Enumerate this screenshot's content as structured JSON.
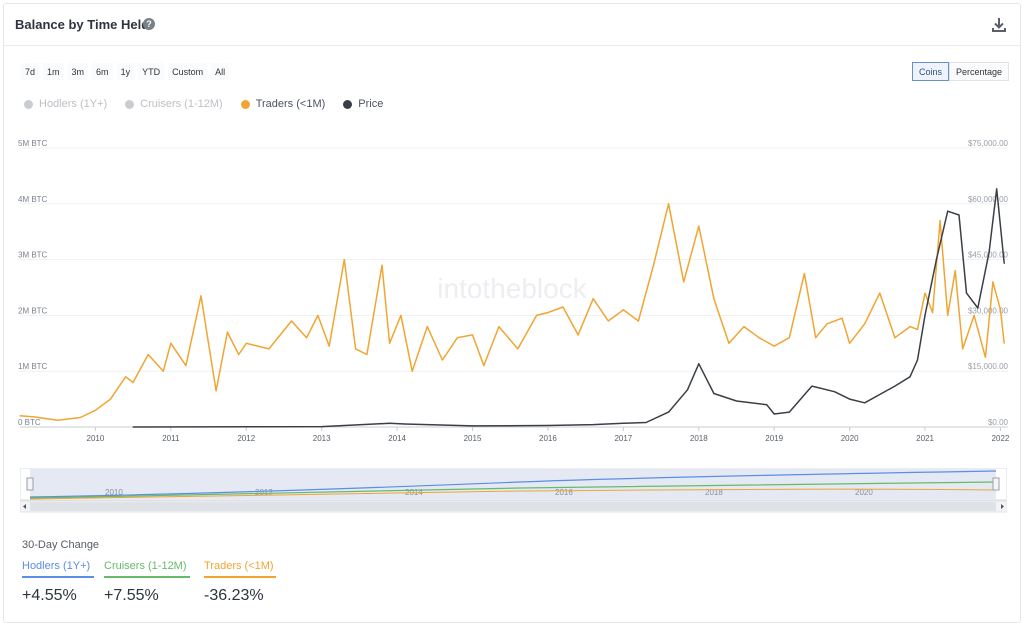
{
  "header": {
    "title": "Balance by Time Held"
  },
  "ranges": [
    "7d",
    "1m",
    "3m",
    "6m",
    "1y",
    "YTD",
    "Custom",
    "All"
  ],
  "toggle": {
    "coins": "Coins",
    "percentage": "Percentage",
    "active": "coins"
  },
  "legend": [
    {
      "label": "Hodlers (1Y+)",
      "color": "#c9ccd1",
      "enabled": false
    },
    {
      "label": "Cruisers (1-12M)",
      "color": "#c9ccd1",
      "enabled": false
    },
    {
      "label": "Traders (<1M)",
      "color": "#f0a532",
      "enabled": true
    },
    {
      "label": "Price",
      "color": "#3a3f46",
      "enabled": true
    }
  ],
  "watermark": "intotheblock",
  "chart_data": {
    "type": "line",
    "title": "Balance by Time Held",
    "x_ticks": [
      "2010",
      "2011",
      "2012",
      "2013",
      "2014",
      "2015",
      "2016",
      "2017",
      "2018",
      "2019",
      "2020",
      "2021",
      "2022"
    ],
    "y_left": {
      "ticks": [
        "0 BTC",
        "1M BTC",
        "2M BTC",
        "3M BTC",
        "4M BTC",
        "5M BTC"
      ],
      "range": [
        0,
        5000000
      ]
    },
    "y_right": {
      "ticks": [
        "$0.00",
        "$15,000.00",
        "$30,000.00",
        "$45,000.00",
        "$60,000.00",
        "$75,000.00"
      ],
      "range": [
        0,
        75000
      ]
    },
    "grid": true,
    "series": [
      {
        "name": "Traders (<1M)",
        "axis": "left",
        "color": "#f0a532",
        "x": [
          2009.0,
          2009.2,
          2009.5,
          2009.8,
          2010.0,
          2010.2,
          2010.4,
          2010.5,
          2010.7,
          2010.9,
          2011.0,
          2011.2,
          2011.4,
          2011.5,
          2011.6,
          2011.75,
          2011.9,
          2012.0,
          2012.3,
          2012.6,
          2012.8,
          2012.95,
          2013.1,
          2013.3,
          2013.45,
          2013.6,
          2013.8,
          2013.9,
          2014.05,
          2014.2,
          2014.4,
          2014.6,
          2014.8,
          2015.0,
          2015.15,
          2015.35,
          2015.6,
          2015.85,
          2016.0,
          2016.2,
          2016.4,
          2016.6,
          2016.8,
          2017.0,
          2017.2,
          2017.4,
          2017.6,
          2017.8,
          2018.0,
          2018.2,
          2018.4,
          2018.6,
          2018.8,
          2019.0,
          2019.2,
          2019.4,
          2019.55,
          2019.7,
          2019.9,
          2020.0,
          2020.2,
          2020.4,
          2020.6,
          2020.8,
          2020.9,
          2021.0,
          2021.1,
          2021.2,
          2021.3,
          2021.4,
          2021.5,
          2021.65,
          2021.8,
          2021.9,
          2022.0,
          2022.05
        ],
        "values": [
          200000,
          180000,
          120000,
          170000,
          300000,
          500000,
          900000,
          800000,
          1300000,
          1000000,
          1500000,
          1100000,
          2350000,
          1500000,
          650000,
          1700000,
          1300000,
          1500000,
          1400000,
          1900000,
          1600000,
          2000000,
          1450000,
          3000000,
          1400000,
          1300000,
          2900000,
          1500000,
          2000000,
          1000000,
          1800000,
          1200000,
          1600000,
          1650000,
          1100000,
          1800000,
          1400000,
          2000000,
          2050000,
          2150000,
          1650000,
          2300000,
          1900000,
          2100000,
          1900000,
          2900000,
          4000000,
          2600000,
          3600000,
          2300000,
          1500000,
          1800000,
          1600000,
          1450000,
          1600000,
          2750000,
          1600000,
          1850000,
          1950000,
          1500000,
          1850000,
          2400000,
          1600000,
          1800000,
          1750000,
          2400000,
          2050000,
          3700000,
          2000000,
          2800000,
          1400000,
          2000000,
          1250000,
          2600000,
          2100000,
          1500000
        ]
      },
      {
        "name": "Price",
        "axis": "right",
        "color": "#3a3f46",
        "x": [
          2010.5,
          2013.0,
          2013.9,
          2014.1,
          2015.0,
          2016.0,
          2016.6,
          2017.0,
          2017.3,
          2017.6,
          2017.85,
          2018.0,
          2018.2,
          2018.5,
          2018.9,
          2019.0,
          2019.2,
          2019.5,
          2019.8,
          2020.0,
          2020.2,
          2020.6,
          2020.8,
          2020.9,
          2021.0,
          2021.15,
          2021.3,
          2021.45,
          2021.55,
          2021.7,
          2021.85,
          2021.95,
          2022.05
        ],
        "values": [
          0,
          100,
          1000,
          800,
          300,
          400,
          650,
          1000,
          1200,
          4000,
          10000,
          17000,
          9000,
          7000,
          6000,
          3500,
          4000,
          11000,
          9500,
          7500,
          6500,
          11000,
          13500,
          18000,
          30000,
          45000,
          58000,
          57000,
          36000,
          32000,
          47000,
          64000,
          44000
        ]
      }
    ]
  },
  "navigator": {
    "ticks": [
      "2010",
      "2012",
      "2014",
      "2016",
      "2018",
      "2020"
    ]
  },
  "change": {
    "title": "30-Day Change",
    "items": [
      {
        "label": "Hodlers (1Y+)",
        "value": "+4.55%",
        "color": "#5b8ee6"
      },
      {
        "label": "Cruisers (1-12M)",
        "value": "+7.55%",
        "color": "#66bb6a"
      },
      {
        "label": "Traders (<1M)",
        "value": "-36.23%",
        "color": "#f0a532"
      }
    ]
  }
}
